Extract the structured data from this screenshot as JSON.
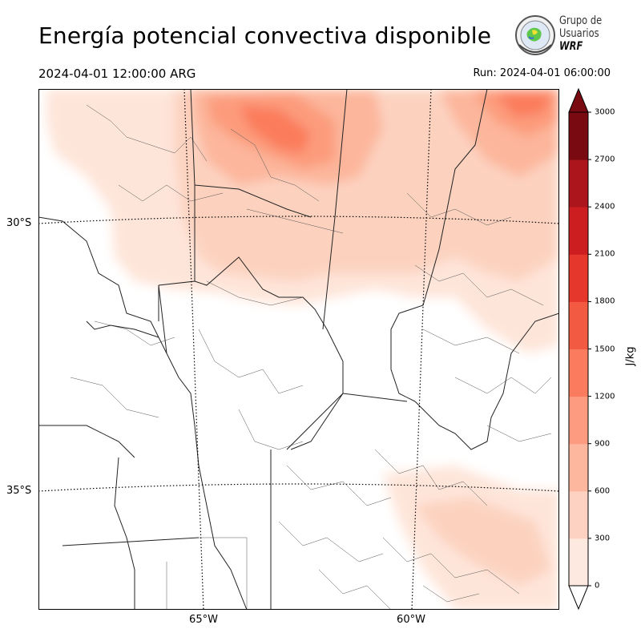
{
  "header": {
    "title": "Energía potencial convectiva disponible",
    "valid_time": "2024-04-01 12:00:00 ARG",
    "run_time": "Run: 2024-04-01 06:00:00"
  },
  "logo": {
    "line1": "Grupo de",
    "line2": "Usuarios",
    "line3": "WRF"
  },
  "map": {
    "lat_labels": [
      "30°S",
      "35°S"
    ],
    "lon_labels": [
      "65°W",
      "60°W"
    ],
    "fill_colors": {
      "0-300": "#fee5d9",
      "300-600": "#fcd2bf",
      "600-900": "#fcb69b",
      "900-1200": "#fc9b7b",
      "1200-1500": "#fb7c5c",
      "1500-1800": "#f6583d",
      "1800-2100": "#e83a2e",
      "2100-2400": "#cf1c1e",
      "2400-2700": "#b01117",
      "2700-3000": "#7d0712"
    }
  },
  "colorbar": {
    "ticks": [
      "0",
      "300",
      "600",
      "900",
      "1200",
      "1500",
      "1800",
      "2100",
      "2400",
      "2700",
      "3000"
    ],
    "unit": "J/kg",
    "colors": [
      "#fee9e0",
      "#fdd2c2",
      "#fcb79e",
      "#fc9b7f",
      "#fa7b5d",
      "#f25b41",
      "#e6372c",
      "#cc1e20",
      "#ac151c",
      "#7a0a12"
    ],
    "extend": "both"
  }
}
